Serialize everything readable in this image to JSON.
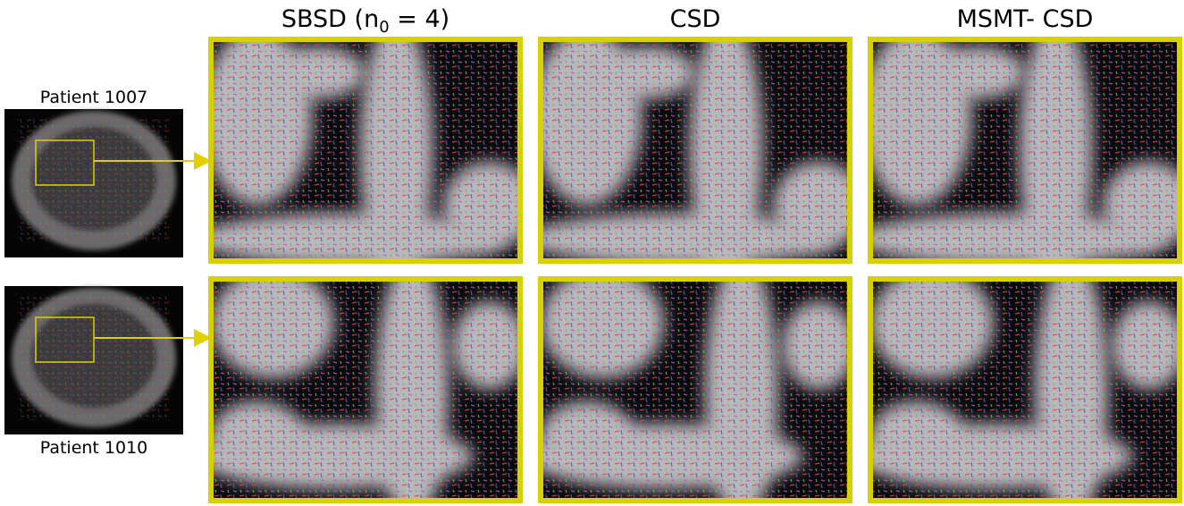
{
  "columns": [
    {
      "title": "SBSD (n",
      "subscript": "0",
      "suffix": " = 4)"
    },
    {
      "title": "CSD"
    },
    {
      "title": "MSMT- CSD"
    }
  ],
  "rows": [
    {
      "label": "Patient 1007"
    },
    {
      "label": "Patient 1010"
    }
  ]
}
